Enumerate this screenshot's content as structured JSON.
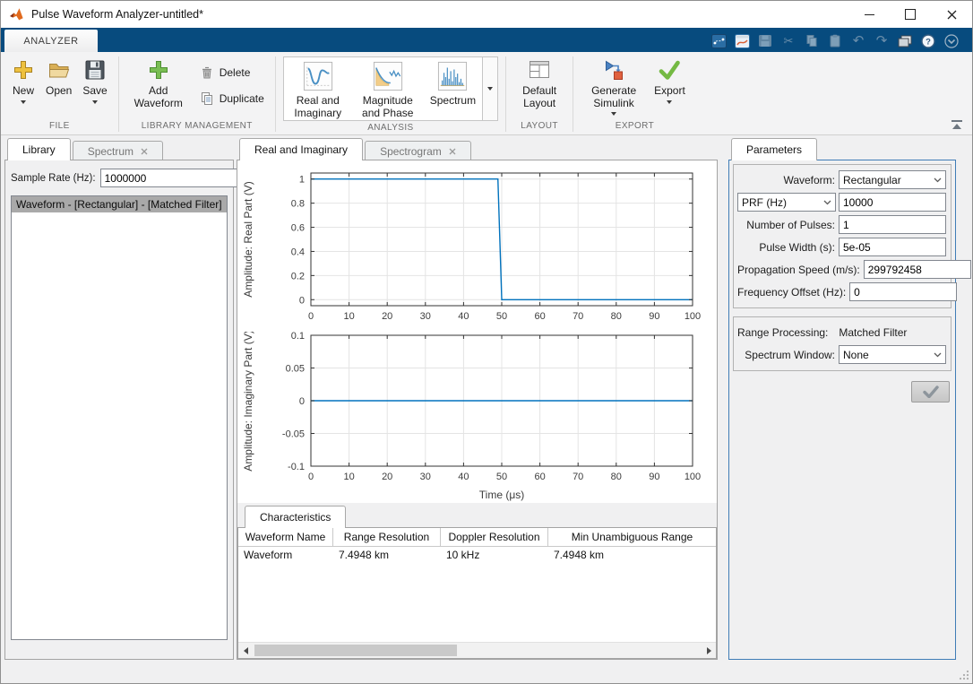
{
  "window": {
    "title": "Pulse Waveform Analyzer-untitled*"
  },
  "ribbon": {
    "tab_label": "ANALYZER",
    "qat_icons": [
      "data-brush-icon",
      "new-figure-icon",
      "save-icon",
      "cut-icon",
      "copy-icon",
      "paste-icon",
      "undo-icon",
      "redo-icon",
      "window-layout-icon",
      "help-icon",
      "more-options-icon"
    ]
  },
  "toolbar": {
    "file": {
      "label": "FILE",
      "new_label": "New",
      "open_label": "Open",
      "save_label": "Save"
    },
    "library": {
      "label": "LIBRARY MANAGEMENT",
      "add_label": "Add Waveform",
      "delete_label": "Delete",
      "duplicate_label": "Duplicate"
    },
    "analysis": {
      "label": "ANALYSIS",
      "real_imag_label": "Real and Imaginary",
      "mag_phase_label": "Magnitude and Phase",
      "spectrum_label": "Spectrum"
    },
    "layout": {
      "label": "LAYOUT",
      "default_label": "Default Layout"
    },
    "export": {
      "label": "EXPORT",
      "generate_label": "Generate Simulink",
      "export_label": "Export"
    }
  },
  "left_panel": {
    "library_tab": "Library",
    "spectrum_tab": "Spectrum",
    "sample_rate_label": "Sample Rate (Hz):",
    "sample_rate_value": "1000000",
    "list": [
      "Waveform - [Rectangular] - [Matched Filter]"
    ]
  },
  "center_panel": {
    "real_imag_tab": "Real and Imaginary",
    "spectrogram_tab": "Spectrogram"
  },
  "characteristics": {
    "tab_label": "Characteristics",
    "columns": [
      "Waveform Name",
      "Range Resolution",
      "Doppler Resolution",
      "Min Unambiguous Range"
    ],
    "rows": [
      [
        "Waveform",
        "7.4948 km",
        "10 kHz",
        "7.4948 km"
      ]
    ]
  },
  "parameters": {
    "tab_label": "Parameters",
    "waveform_label": "Waveform:",
    "waveform_value": "Rectangular",
    "prf_label": "PRF (Hz)",
    "prf_value": "10000",
    "fields": [
      {
        "label": "Number of Pulses:",
        "value": "1"
      },
      {
        "label": "Pulse Width (s):",
        "value": "5e-05"
      },
      {
        "label": "Propagation Speed (m/s):",
        "value": "299792458"
      },
      {
        "label": "Frequency Offset (Hz):",
        "value": "0"
      }
    ],
    "range_processing_label": "Range Processing:",
    "range_processing_value": "Matched Filter",
    "spectrum_window_label": "Spectrum Window:",
    "spectrum_window_value": "None"
  },
  "colors": {
    "ribbon_blue": "#074b7e",
    "plot_line": "#0072BD",
    "focus_border": "#3f7cb6",
    "selection_gray": "#a9a9a9"
  },
  "chart_data": [
    {
      "type": "line",
      "title": "",
      "xlabel": "",
      "ylabel": "Amplitude: Real Part (V)",
      "xlim": [
        0,
        100
      ],
      "ylim": [
        -0.05,
        1.05
      ],
      "xticks": [
        0,
        10,
        20,
        30,
        40,
        50,
        60,
        70,
        80,
        90,
        100
      ],
      "yticks": [
        0,
        0.2,
        0.4,
        0.6,
        0.8,
        1
      ],
      "grid": true,
      "legend": "off",
      "series": [
        {
          "name": "real-part",
          "x": [
            0,
            49,
            50,
            100
          ],
          "y": [
            1,
            1,
            0,
            0
          ]
        }
      ]
    },
    {
      "type": "line",
      "title": "",
      "xlabel": "Time (μs)",
      "ylabel": "Amplitude: Imaginary Part (V)",
      "xlim": [
        0,
        100
      ],
      "ylim": [
        -0.1,
        0.1
      ],
      "xticks": [
        0,
        10,
        20,
        30,
        40,
        50,
        60,
        70,
        80,
        90,
        100
      ],
      "yticks": [
        -0.1,
        -0.05,
        0,
        0.05,
        0.1
      ],
      "grid": true,
      "legend": "off",
      "series": [
        {
          "name": "imaginary-part",
          "x": [
            0,
            100
          ],
          "y": [
            0,
            0
          ]
        }
      ]
    }
  ]
}
